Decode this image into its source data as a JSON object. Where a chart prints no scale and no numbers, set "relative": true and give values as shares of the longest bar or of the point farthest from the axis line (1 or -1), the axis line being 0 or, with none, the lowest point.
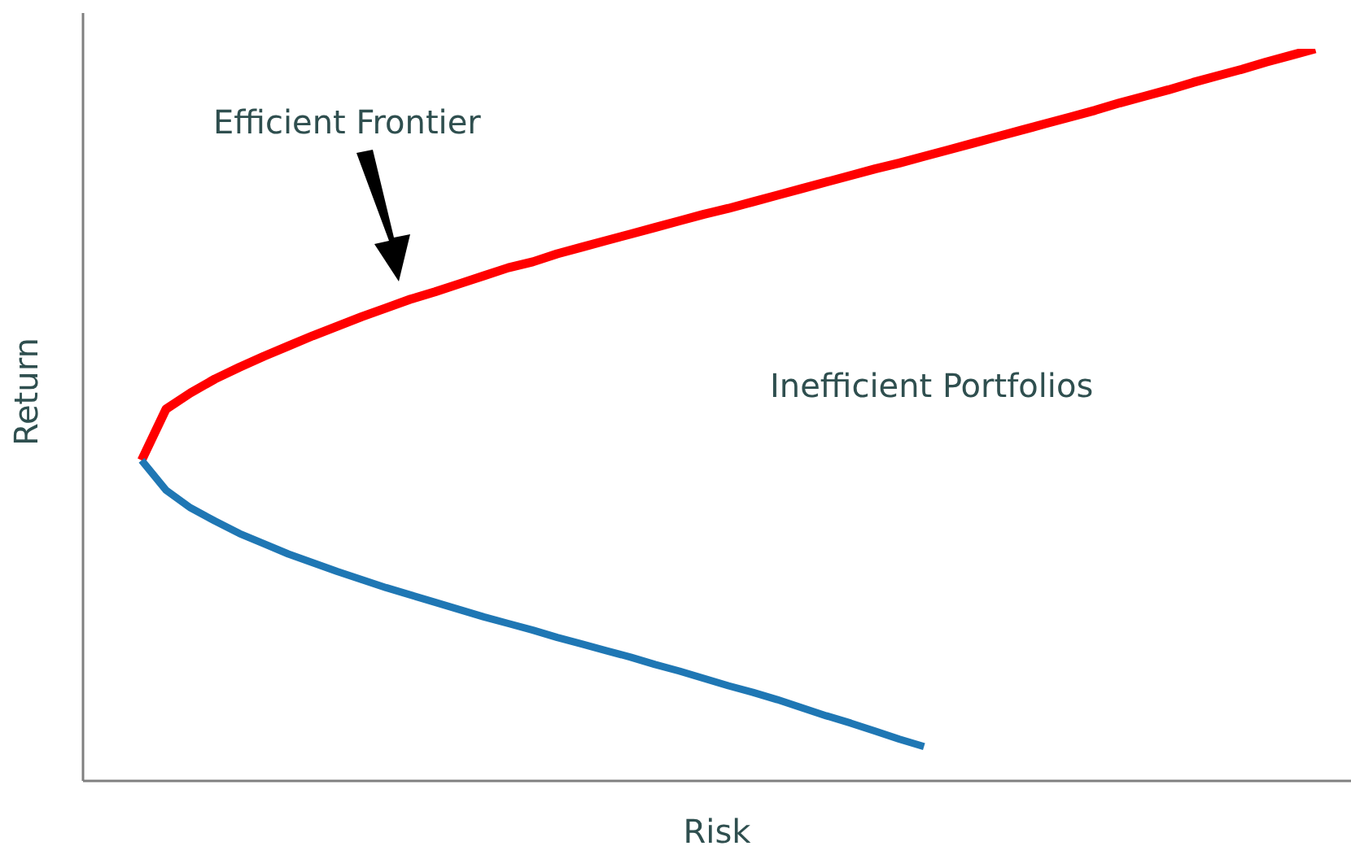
{
  "chart_data": {
    "type": "line",
    "relative": true,
    "xlabel": "Risk",
    "ylabel": "Return",
    "marker": "none",
    "grid": false,
    "annotations": [
      "Efficient Frontier",
      "Inefficient Portfolios"
    ],
    "categories": [
      null,
      null,
      null,
      null,
      null,
      null,
      null,
      null,
      null,
      null,
      null,
      null,
      null,
      null,
      null,
      null,
      null,
      null,
      null,
      null,
      null,
      null,
      null,
      null,
      null,
      null,
      null,
      null,
      null,
      null,
      null,
      null,
      null,
      null,
      null,
      null,
      null,
      null,
      null,
      null,
      null,
      null,
      null,
      null,
      null,
      null,
      null,
      null,
      null
    ],
    "series": [
      {
        "color": "#ff0000",
        "values": [
          0.438,
          0.508,
          0.53,
          0.549,
          0.565,
          0.58,
          0.594,
          0.608,
          0.621,
          0.634,
          0.646,
          0.658,
          0.668,
          0.679,
          0.69,
          0.701,
          0.709,
          0.72,
          0.729,
          0.738,
          0.747,
          0.756,
          0.765,
          0.774,
          0.782,
          0.791,
          0.8,
          0.809,
          0.818,
          0.827,
          0.836,
          0.844,
          0.853,
          0.862,
          0.871,
          0.88,
          0.889,
          0.898,
          0.907,
          0.916,
          0.926,
          0.935,
          0.944,
          0.954,
          0.963,
          0.972,
          0.982,
          0.991,
          1
        ]
      },
      {
        "color": "#1f77b4",
        "values": [
          0.438,
          0.397,
          0.373,
          0.355,
          0.338,
          0.324,
          0.31,
          0.298,
          0.286,
          0.275,
          0.264,
          0.254,
          0.244,
          0.234,
          0.224,
          0.215,
          0.206,
          0.196,
          0.187,
          0.178,
          0.169,
          0.159,
          0.15,
          0.14,
          0.13,
          0.121,
          0.111,
          0.1,
          0.089,
          0.079,
          0.068,
          0.057,
          0.047,
          null,
          null,
          null,
          null,
          null,
          null,
          null,
          null,
          null,
          null,
          null,
          null,
          null,
          null,
          null,
          null
        ]
      }
    ]
  }
}
